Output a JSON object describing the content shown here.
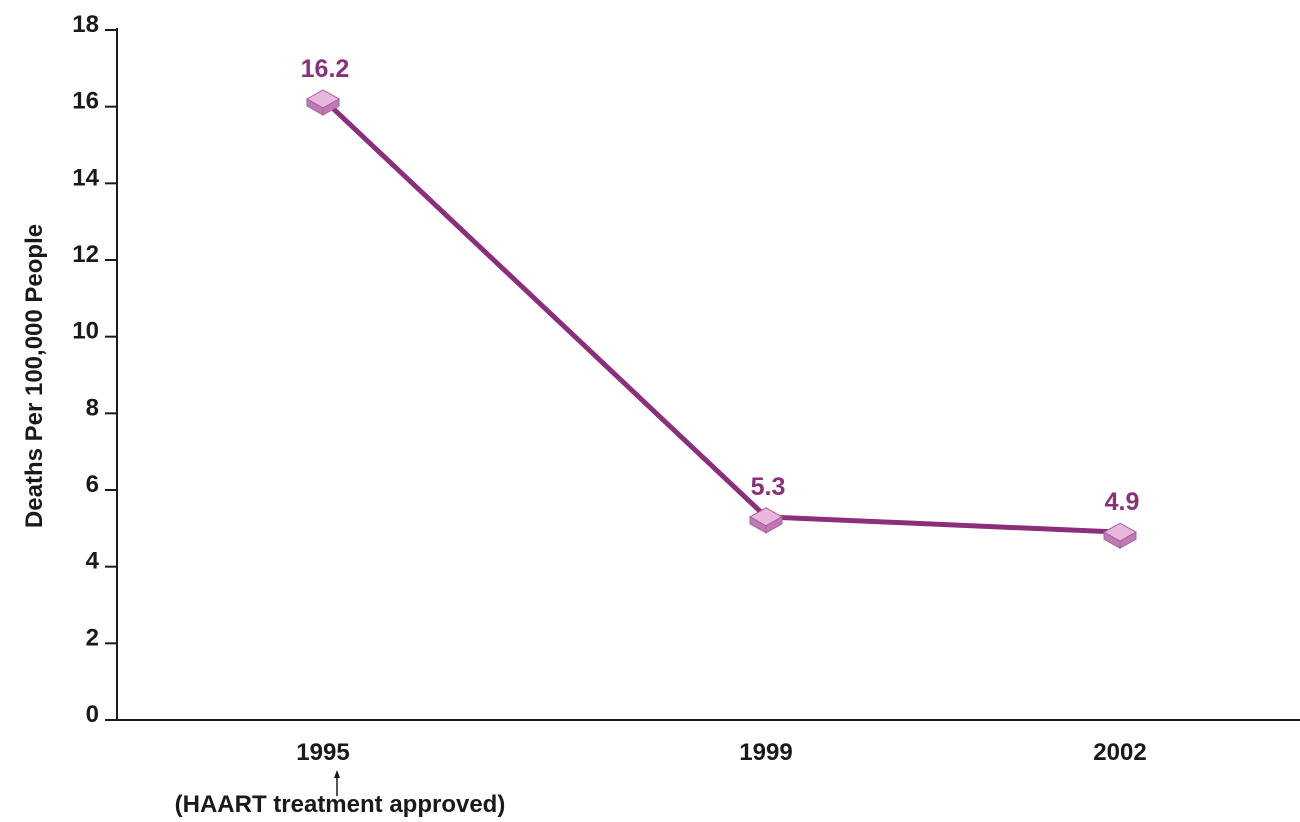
{
  "chart_data": {
    "type": "line",
    "title": "",
    "xlabel": "",
    "ylabel": "Deaths Per 100,000 People",
    "categories": [
      "1995",
      "1999",
      "2002"
    ],
    "series": [
      {
        "values": [
          16.2,
          5.3,
          4.9
        ],
        "data_labels": [
          "16.2",
          "5.3",
          "4.9"
        ]
      }
    ],
    "ylim": [
      0,
      18
    ],
    "yticks": [
      "0",
      "2",
      "4",
      "6",
      "8",
      "10",
      "12",
      "14",
      "16",
      "18"
    ],
    "grid": false,
    "annotation": {
      "category": "1995",
      "text": "(HAART treatment approved)"
    },
    "colors": {
      "line": "#8b2f7c",
      "marker_top": "#e9b6df",
      "marker_side": "#c07ab3",
      "marker_edge": "#a8609b",
      "label": "#8b2f7c",
      "axis": "#1a1a1a"
    }
  }
}
